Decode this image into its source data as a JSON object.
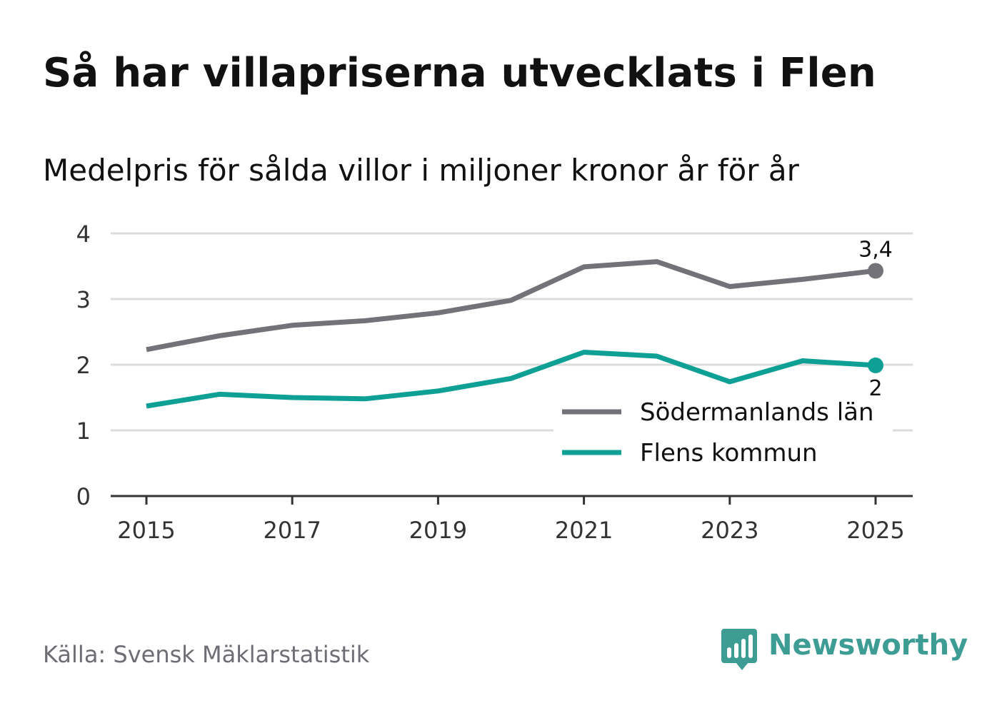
{
  "header": {
    "title": "Så har villapriserna utvecklats i Flen",
    "subtitle": "Medelpris för sålda villor i miljoner kronor år för år"
  },
  "footer": {
    "source": "Källa: Svensk Mäklarstatistik",
    "brand": "Newsworthy",
    "brand_icon": "bar-chart-speech-bubble-icon",
    "brand_color": "#3d9c93"
  },
  "colors": {
    "gridline": "#dcdcdc",
    "axis": "#333333",
    "text": "#111111",
    "source_text": "#6d6d73"
  },
  "chart_data": {
    "type": "line",
    "x": [
      2015,
      2016,
      2017,
      2018,
      2019,
      2020,
      2021,
      2022,
      2023,
      2024,
      2025
    ],
    "x_tick_labels": [
      "2015",
      "2017",
      "2019",
      "2021",
      "2023",
      "2025"
    ],
    "y_tick_labels": [
      "0",
      "1",
      "2",
      "3",
      "4"
    ],
    "ylim": [
      0,
      4
    ],
    "grid": true,
    "legend_position": "bottom-right",
    "series": [
      {
        "name": "Södermanlands län",
        "color": "#727278",
        "values": [
          2.23,
          2.44,
          2.6,
          2.67,
          2.79,
          2.98,
          3.49,
          3.57,
          3.19,
          3.3,
          3.43
        ],
        "end_label": "3,4"
      },
      {
        "name": "Flens kommun",
        "color": "#0fa095",
        "values": [
          1.37,
          1.55,
          1.5,
          1.48,
          1.6,
          1.79,
          2.19,
          2.13,
          1.74,
          2.06,
          1.99
        ],
        "end_label": "2"
      }
    ]
  }
}
